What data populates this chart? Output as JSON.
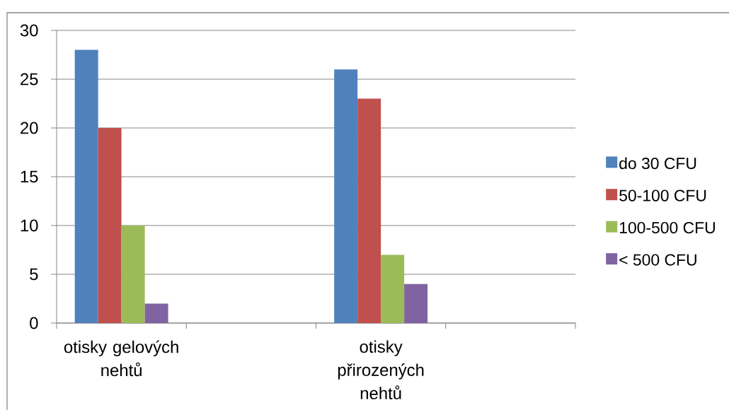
{
  "chart_data": {
    "type": "bar",
    "categories": [
      "otisky gelových nehtů",
      null,
      "otisky přirozených nehtů",
      null
    ],
    "series": [
      {
        "name": "do 30 CFU",
        "color": "#4f81bd",
        "values": [
          28,
          null,
          26,
          null
        ]
      },
      {
        "name": "50-100 CFU",
        "color": "#c0504d",
        "values": [
          20,
          null,
          23,
          null
        ]
      },
      {
        "name": "100-500 CFU",
        "color": "#9bbb59",
        "values": [
          10,
          null,
          7,
          null
        ]
      },
      {
        "name": "< 500 CFU",
        "color": "#8064a2",
        "values": [
          2,
          null,
          4,
          null
        ]
      }
    ],
    "ylim": [
      0,
      30
    ],
    "yticks": [
      0,
      5,
      10,
      15,
      20,
      25,
      30
    ],
    "grid": "y",
    "legend": "right"
  }
}
